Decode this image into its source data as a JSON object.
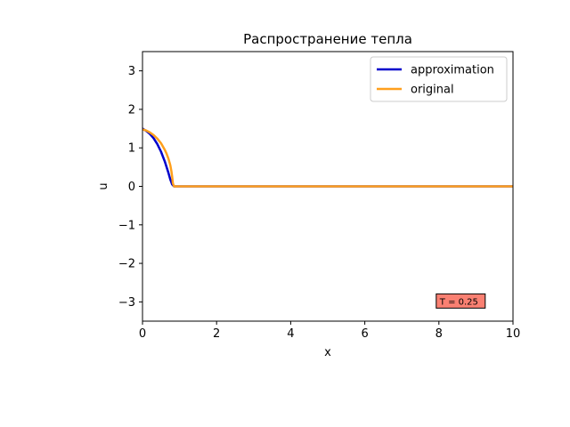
{
  "chart_data": {
    "type": "line",
    "title": "Распространение тепла",
    "xlabel": "x",
    "ylabel": "u",
    "xlim": [
      0,
      10
    ],
    "ylim": [
      -3.5,
      3.5
    ],
    "xticks": [
      0,
      2,
      4,
      6,
      8,
      10
    ],
    "yticks": [
      -3,
      -2,
      -1,
      0,
      1,
      2,
      3
    ],
    "grid": false,
    "legend_position": "top-right",
    "series": [
      {
        "name": "approximation",
        "color": "#0000cc",
        "x": [
          0,
          0.1,
          0.2,
          0.3,
          0.4,
          0.5,
          0.6,
          0.7,
          0.75,
          0.8,
          0.85,
          1,
          2,
          4,
          6,
          8,
          10
        ],
        "y": [
          1.5,
          1.44,
          1.36,
          1.25,
          1.1,
          0.9,
          0.65,
          0.35,
          0.18,
          0.05,
          0.0,
          0.0,
          0.0,
          0.0,
          0.0,
          0.0,
          0.0
        ]
      },
      {
        "name": "original",
        "color": "#ff9f1c",
        "x": [
          0,
          0.1,
          0.2,
          0.3,
          0.4,
          0.5,
          0.6,
          0.65,
          0.7,
          0.75,
          0.78,
          0.8,
          0.82,
          0.85,
          1,
          2,
          4,
          6,
          8,
          10
        ],
        "y": [
          1.48,
          1.45,
          1.4,
          1.33,
          1.24,
          1.12,
          0.95,
          0.85,
          0.72,
          0.55,
          0.4,
          0.25,
          0.08,
          0.0,
          0.0,
          0.0,
          0.0,
          0.0,
          0.0,
          0.0
        ]
      }
    ],
    "annotations": [
      {
        "text": "T = 0.25",
        "x": 8,
        "y": -3,
        "box_color": "#fa8072"
      }
    ]
  }
}
